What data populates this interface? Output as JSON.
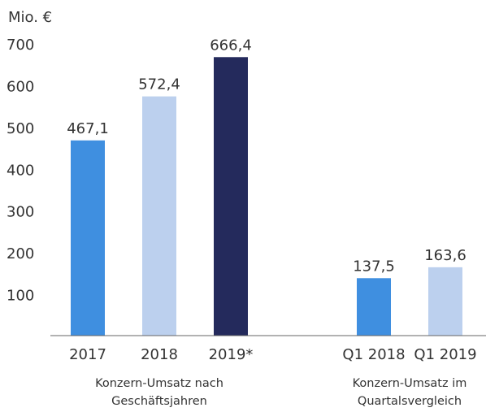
{
  "chart_data": {
    "type": "bar",
    "unit_label": "Mio. €",
    "categories": [
      "2017",
      "2018",
      "2019*",
      null,
      "Q1 2018",
      "Q1 2019"
    ],
    "values": [
      467.1,
      572.4,
      666.4,
      null,
      137.5,
      163.6
    ],
    "value_labels": [
      "467,1",
      "572,4",
      "666,4",
      null,
      "137,5",
      "163,6"
    ],
    "colors": [
      "#3f8fe0",
      "#bcd0ee",
      "#242a5c",
      null,
      "#3f8fe0",
      "#bcd0ee"
    ],
    "group_labels": [
      {
        "lines": [
          "Konzern-Umsatz nach",
          "Geschäftsjahren"
        ],
        "categories": [
          0,
          2
        ]
      },
      {
        "lines": [
          "Konzern-Umsatz im",
          "Quartalsvergleich"
        ],
        "categories": [
          4,
          5
        ]
      }
    ],
    "ylim": [
      0,
      700
    ],
    "yticks": [
      100,
      200,
      300,
      400,
      500,
      600,
      700
    ],
    "grid": false
  }
}
